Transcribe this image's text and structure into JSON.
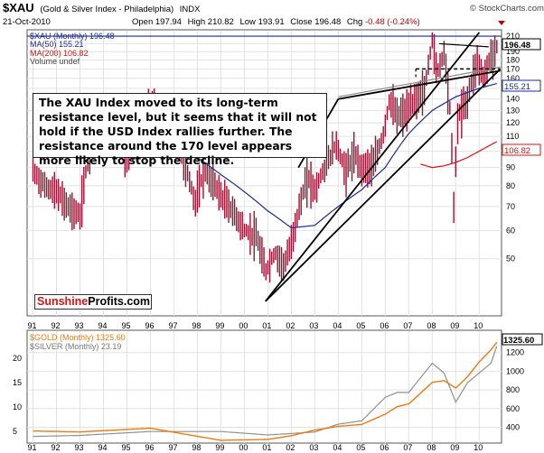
{
  "header": {
    "symbol": "$XAU",
    "name": "(Gold & Silver Index - Philadelphia)",
    "exchange": "INDX",
    "date": "21-Oct-2010",
    "quote": {
      "open_label": "Open",
      "open": "197.94",
      "high_label": "High",
      "high": "210.82",
      "low_label": "Low",
      "low": "193.91",
      "close_label": "Close",
      "close": "196.48",
      "chg_label": "Chg",
      "chg": "-0.48 (-0.24%)"
    },
    "credit": "© StockCharts.com"
  },
  "annotation": "The XAU Index moved to its long-term resistance level, but it seems that it will not hold if the USD Index rallies further. The resistance around the 170 level appears more likely to stop the decline.",
  "brand": {
    "part1": "Sunshine",
    "part2": "Profits.com"
  },
  "colors": {
    "ma50": "#1a2a99",
    "ma200": "#d41414",
    "gold": "#f07a10",
    "silver": "#909090",
    "bar": "#a01030",
    "line": "#000000"
  },
  "chart_data": [
    {
      "type": "line",
      "title": "$XAU (Gold & Silver Index - Philadelphia) INDX",
      "scale": "log",
      "ylim": [
        35,
        215
      ],
      "legend": [
        {
          "name": "$XAU (Monthly)",
          "value": "196.48"
        },
        {
          "name": "MA(50)",
          "value": "155.21"
        },
        {
          "name": "MA(200)",
          "value": "106.82"
        },
        {
          "name": "Volume",
          "value": "undef"
        }
      ],
      "y_ticks": [
        210,
        200,
        190,
        180,
        170,
        160,
        150,
        140,
        130,
        120,
        110,
        100,
        90,
        80,
        70,
        60,
        50
      ],
      "x_tick_labels": [
        "91",
        "92",
        "93",
        "94",
        "95",
        "96",
        "97",
        "98",
        "99",
        "00",
        "01",
        "02",
        "03",
        "04",
        "05",
        "06",
        "07",
        "08",
        "09",
        "10"
      ],
      "last_value_labels": {
        "xau": "196.48",
        "ma50": "155.21",
        "ma200": "106.82"
      },
      "series": [
        {
          "name": "$XAU (Monthly)",
          "x": [
            1991.0,
            1991.5,
            1992.0,
            1992.5,
            1993.0,
            1993.3,
            1993.7,
            1994.0,
            1994.5,
            1995.0,
            1995.5,
            1996.0,
            1996.3,
            1996.7,
            1997.0,
            1997.5,
            1997.9,
            1998.3,
            1998.7,
            1999.0,
            1999.5,
            2000.0,
            2000.5,
            2000.9,
            2001.3,
            2001.7,
            2002.0,
            2002.3,
            2002.7,
            2003.0,
            2003.5,
            2003.9,
            2004.3,
            2004.7,
            2005.0,
            2005.5,
            2005.9,
            2006.2,
            2006.5,
            2006.9,
            2007.3,
            2007.7,
            2008.0,
            2008.2,
            2008.5,
            2008.8,
            2008.9,
            2009.1,
            2009.5,
            2009.9,
            2010.2,
            2010.5,
            2010.8
          ],
          "values": [
            88,
            80,
            77,
            70,
            66,
            92,
            122,
            118,
            112,
            96,
            108,
            135,
            130,
            115,
            112,
            90,
            72,
            88,
            82,
            75,
            68,
            60,
            58,
            46,
            52,
            48,
            55,
            68,
            85,
            78,
            92,
            105,
            88,
            98,
            90,
            92,
            110,
            140,
            125,
            130,
            140,
            150,
            205,
            165,
            190,
            120,
            65,
            125,
            140,
            180,
            160,
            185,
            196
          ]
        },
        {
          "name": "MA(50)",
          "x": [
            1991.0,
            1992.0,
            1993.0,
            1994.0,
            1995.0,
            1996.0,
            1997.0,
            1998.0,
            1999.0,
            2000.0,
            2001.0,
            2002.0,
            2003.0,
            2004.0,
            2005.0,
            2006.0,
            2007.0,
            2008.0,
            2009.0,
            2010.0,
            2010.8
          ],
          "values": [
            110,
            100,
            95,
            100,
            103,
            108,
            105,
            96,
            86,
            77,
            68,
            61,
            62,
            70,
            78,
            90,
            112,
            130,
            142,
            150,
            155
          ]
        },
        {
          "name": "MA(200)",
          "x": [
            2007.5,
            2008.0,
            2008.5,
            2009.0,
            2009.5,
            2010.0,
            2010.8
          ],
          "values": [
            92,
            90,
            91,
            93,
            96,
            100,
            106.82
          ]
        }
      ],
      "annotations": [
        "rising channel (trend lines)",
        "long-term resistance line",
        "dashed line ~170"
      ]
    },
    {
      "type": "line",
      "legend": [
        {
          "name": "$GOLD (Monthly)",
          "value": "1325.60"
        },
        {
          "name": "$SILVER (Monthly)",
          "value": "23.19"
        }
      ],
      "y_ticks_right": [
        1200,
        1000,
        800,
        600,
        400
      ],
      "y_ticks_left": [
        20,
        15,
        10,
        5
      ],
      "last_value_label": "1325.60",
      "x_tick_labels": [
        "91",
        "92",
        "93",
        "94",
        "95",
        "96",
        "97",
        "98",
        "99",
        "00",
        "01",
        "02",
        "03",
        "04",
        "05",
        "06",
        "07",
        "08",
        "09",
        "10"
      ],
      "series": [
        {
          "name": "$GOLD (Monthly)",
          "x": [
            1991.0,
            1993.0,
            1996.0,
            1999.0,
            2001.0,
            2002.0,
            2003.0,
            2004.0,
            2005.0,
            2006.0,
            2006.5,
            2007.0,
            2008.0,
            2008.5,
            2009.0,
            2009.5,
            2010.0,
            2010.5,
            2010.8
          ],
          "values": [
            360,
            350,
            390,
            260,
            270,
            310,
            370,
            410,
            430,
            540,
            620,
            650,
            880,
            900,
            820,
            940,
            1100,
            1230,
            1325.6
          ]
        },
        {
          "name": "$SILVER (Monthly)",
          "x": [
            1991.0,
            1993.0,
            1996.0,
            1999.0,
            2001.0,
            2002.0,
            2003.0,
            2004.0,
            2005.0,
            2006.0,
            2006.5,
            2007.0,
            2008.0,
            2008.5,
            2009.0,
            2009.5,
            2010.0,
            2010.5,
            2010.8
          ],
          "values": [
            4.0,
            4.2,
            5.0,
            5.0,
            4.3,
            4.6,
            4.9,
            6.5,
            7.2,
            12,
            13,
            13,
            19,
            17,
            11,
            15,
            17,
            19,
            23.19
          ]
        }
      ]
    }
  ]
}
